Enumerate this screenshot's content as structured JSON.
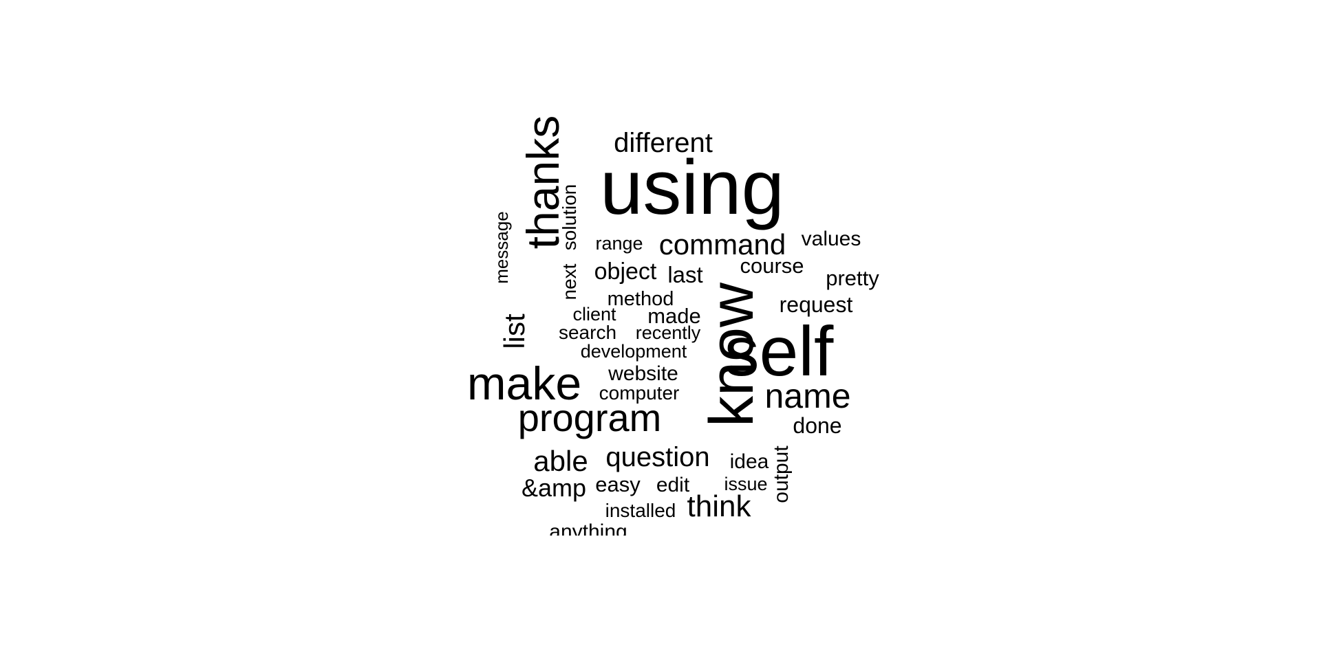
{
  "chart_data": {
    "type": "wordcloud",
    "color": "#000000",
    "background": "#ffffff",
    "words": [
      {
        "text": "using",
        "weight": 100
      },
      {
        "text": "self",
        "weight": 95
      },
      {
        "text": "know",
        "weight": 88
      },
      {
        "text": "thanks",
        "weight": 60
      },
      {
        "text": "make",
        "weight": 62
      },
      {
        "text": "program",
        "weight": 50
      },
      {
        "text": "name",
        "weight": 48
      },
      {
        "text": "command",
        "weight": 40
      },
      {
        "text": "question",
        "weight": 38
      },
      {
        "text": "able",
        "weight": 37
      },
      {
        "text": "think",
        "weight": 37
      },
      {
        "text": "list",
        "weight": 36
      },
      {
        "text": "different",
        "weight": 36
      },
      {
        "text": "&amp",
        "weight": 33
      },
      {
        "text": "object",
        "weight": 32
      },
      {
        "text": "last",
        "weight": 31
      },
      {
        "text": "request",
        "weight": 30
      },
      {
        "text": "pretty",
        "weight": 30
      },
      {
        "text": "course",
        "weight": 30
      },
      {
        "text": "done",
        "weight": 30
      },
      {
        "text": "made",
        "weight": 29
      },
      {
        "text": "website",
        "weight": 29
      },
      {
        "text": "values",
        "weight": 28
      },
      {
        "text": "output",
        "weight": 28
      },
      {
        "text": "easy",
        "weight": 28
      },
      {
        "text": "edit",
        "weight": 28
      },
      {
        "text": "idea",
        "weight": 28
      },
      {
        "text": "method",
        "weight": 28
      },
      {
        "text": "search",
        "weight": 27
      },
      {
        "text": "anything",
        "weight": 27
      },
      {
        "text": "installed",
        "weight": 26
      },
      {
        "text": "computer",
        "weight": 26
      },
      {
        "text": "development",
        "weight": 26
      },
      {
        "text": "recently",
        "weight": 26
      },
      {
        "text": "solution",
        "weight": 26
      },
      {
        "text": "next",
        "weight": 26
      },
      {
        "text": "range",
        "weight": 26
      },
      {
        "text": "client",
        "weight": 26
      },
      {
        "text": "issue",
        "weight": 26
      },
      {
        "text": "message",
        "weight": 24
      }
    ]
  }
}
